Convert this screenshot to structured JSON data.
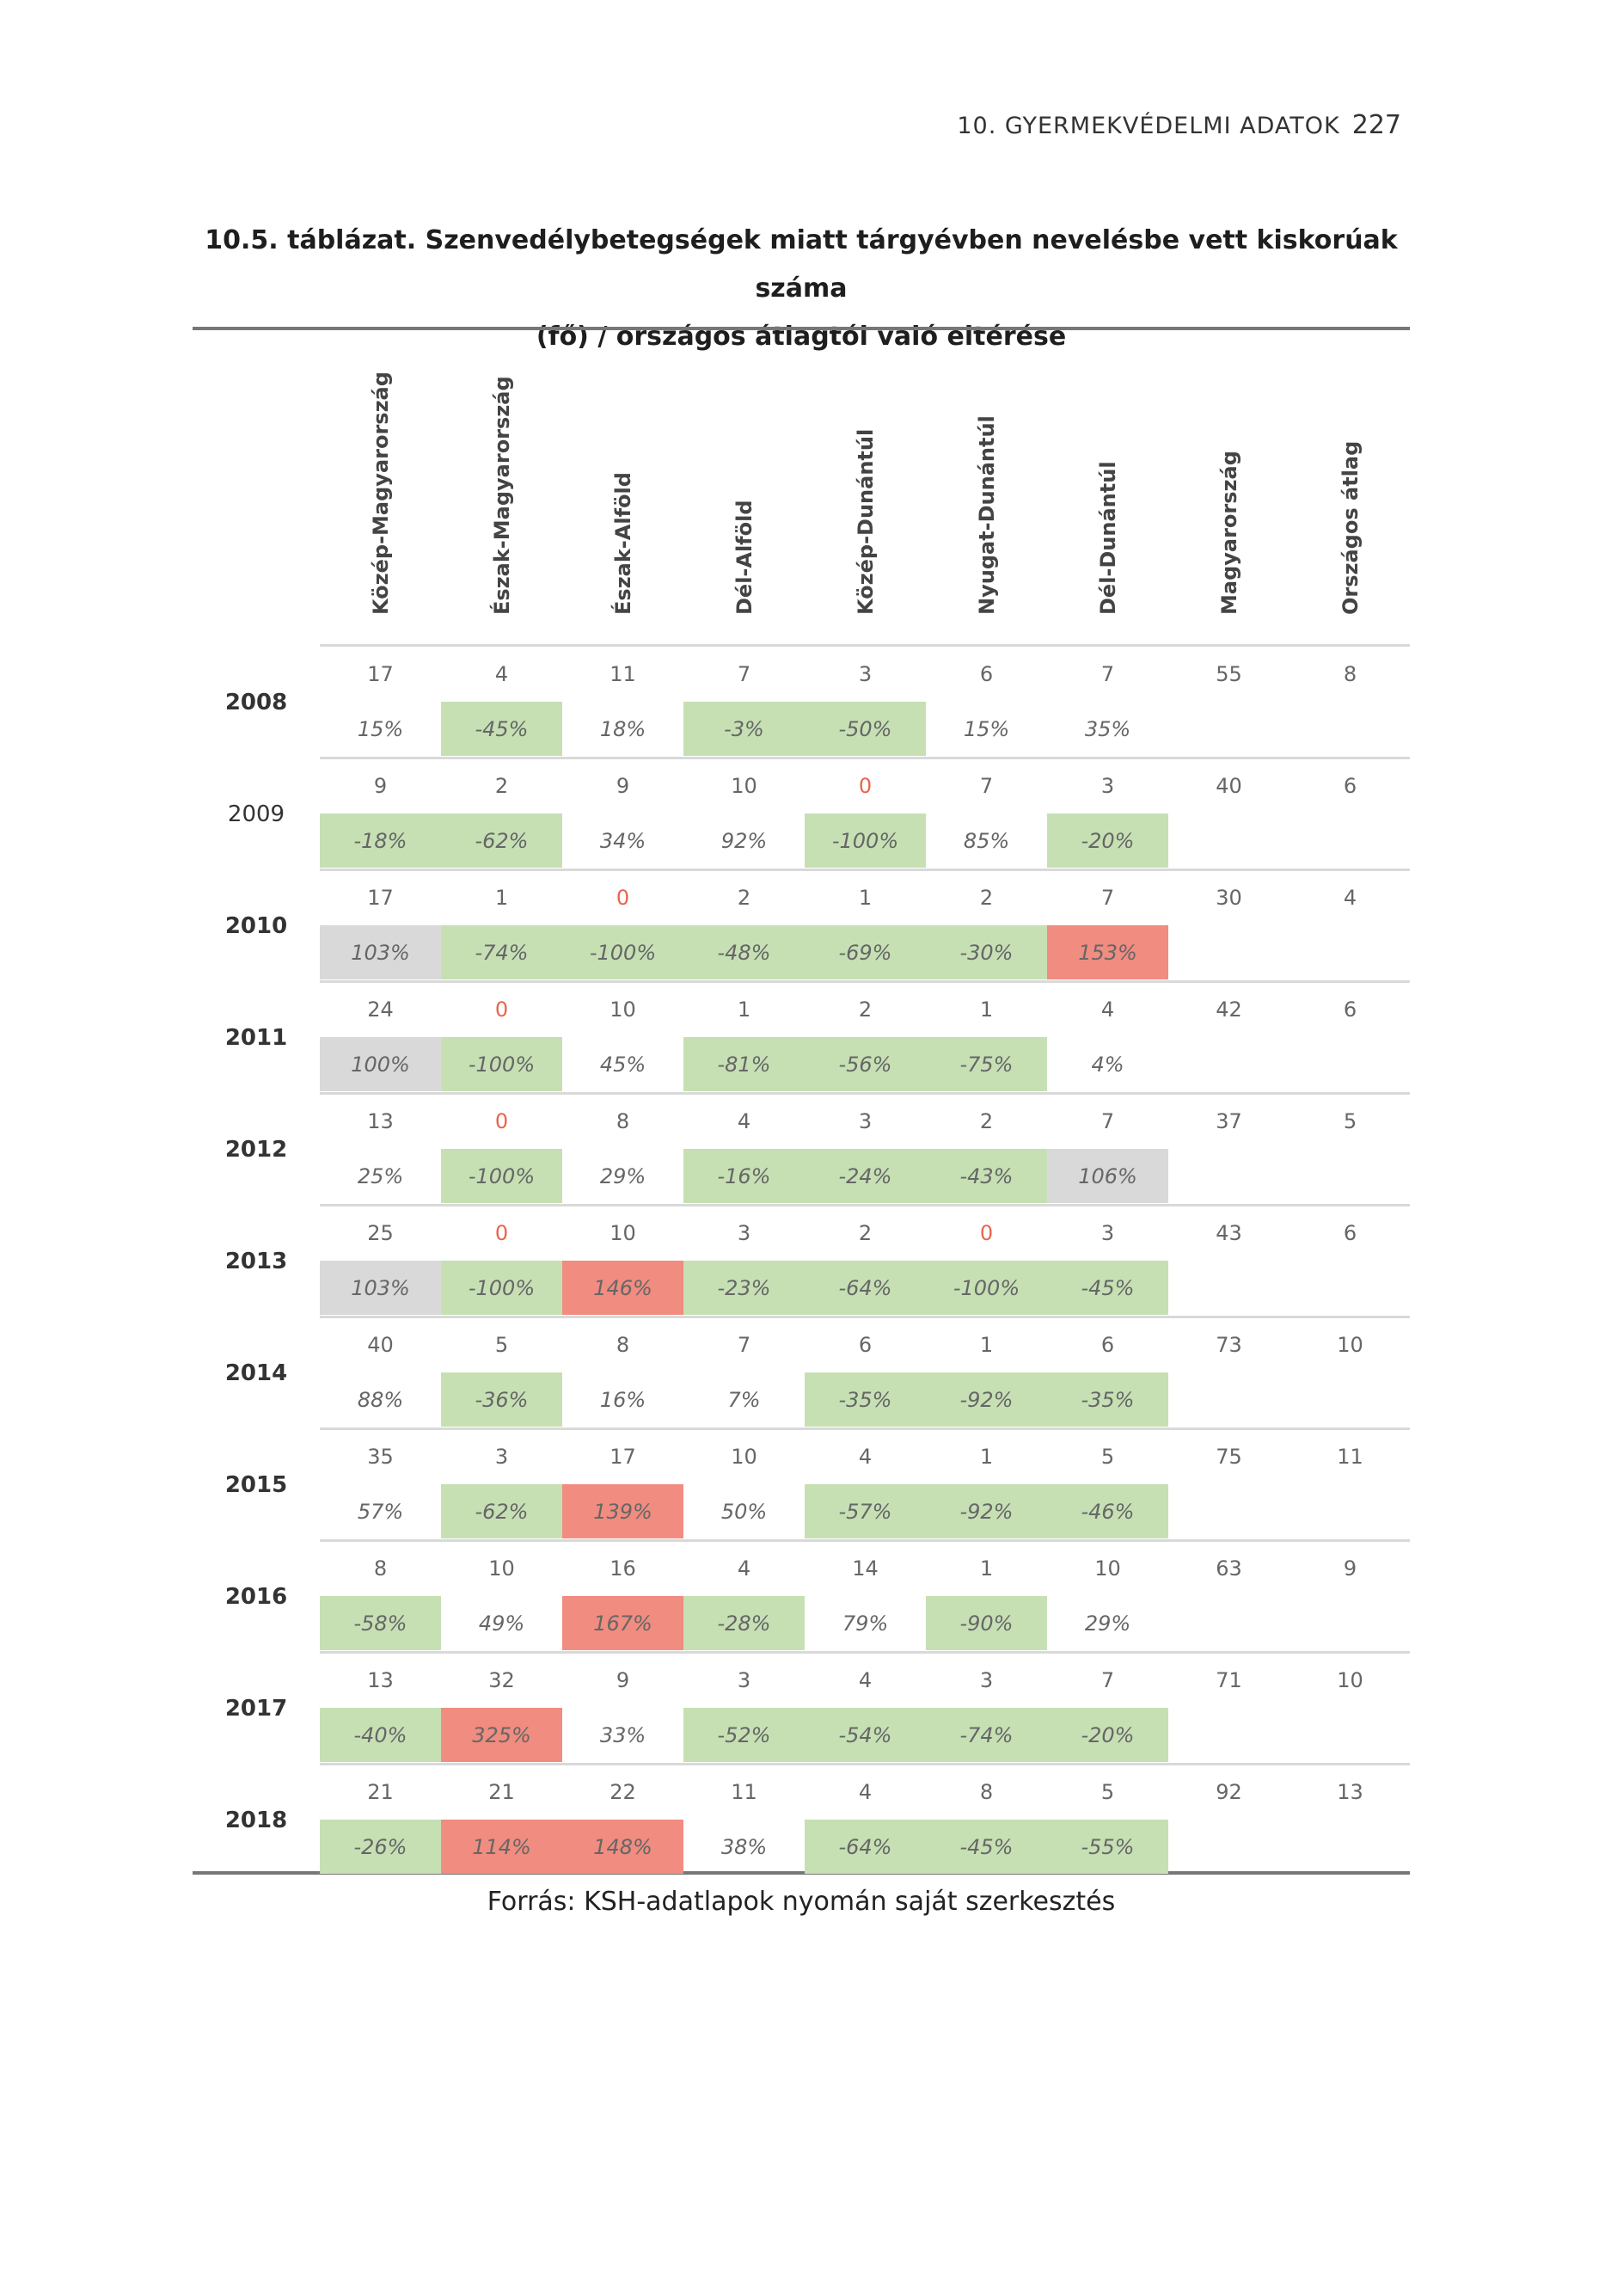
{
  "running_head": {
    "chapter": "10. GYERMEKVÉDELMI ADATOK",
    "page": "227"
  },
  "caption": {
    "line1": "10.5. táblázat. Szenvedélybetegségek miatt tárgyévben nevelésbe vett kiskorúak száma",
    "line2": "(fő) / országos átlagtól való eltérése"
  },
  "columns": [
    "Közép-Magyarország",
    "Észak-Magyarország",
    "Észak-Alföld",
    "Dél-Alföld",
    "Közép-Dunántúl",
    "Nyugat-Dunántúl",
    "Dél-Dunántúl",
    "Magyarország",
    "Országos átlag"
  ],
  "rows": [
    {
      "year": "2008",
      "bold": true,
      "values": [
        "17",
        "4",
        "11",
        "7",
        "3",
        "6",
        "7",
        "55",
        "8"
      ],
      "pct": [
        "15%",
        "-45%",
        "18%",
        "-3%",
        "-50%",
        "15%",
        "35%"
      ],
      "bg": [
        "",
        "green",
        "",
        "green",
        "green",
        "",
        ""
      ]
    },
    {
      "year": "2009",
      "bold": false,
      "values": [
        "9",
        "2",
        "9",
        "10",
        "0",
        "7",
        "3",
        "40",
        "6"
      ],
      "pct": [
        "-18%",
        "-62%",
        "34%",
        "92%",
        "-100%",
        "85%",
        "-20%"
      ],
      "bg": [
        "green",
        "green",
        "",
        "",
        "green",
        "",
        "green"
      ]
    },
    {
      "year": "2010",
      "bold": true,
      "values": [
        "17",
        "1",
        "0",
        "2",
        "1",
        "2",
        "7",
        "30",
        "4"
      ],
      "pct": [
        "103%",
        "-74%",
        "-100%",
        "-48%",
        "-69%",
        "-30%",
        "153%"
      ],
      "bg": [
        "gray",
        "green",
        "green",
        "green",
        "green",
        "green",
        "red"
      ]
    },
    {
      "year": "2011",
      "bold": true,
      "values": [
        "24",
        "0",
        "10",
        "1",
        "2",
        "1",
        "4",
        "42",
        "6"
      ],
      "pct": [
        "100%",
        "-100%",
        "45%",
        "-81%",
        "-56%",
        "-75%",
        "4%"
      ],
      "bg": [
        "gray",
        "green",
        "",
        "green",
        "green",
        "green",
        ""
      ]
    },
    {
      "year": "2012",
      "bold": true,
      "values": [
        "13",
        "0",
        "8",
        "4",
        "3",
        "2",
        "7",
        "37",
        "5"
      ],
      "pct": [
        "25%",
        "-100%",
        "29%",
        "-16%",
        "-24%",
        "-43%",
        "106%"
      ],
      "bg": [
        "",
        "green",
        "",
        "green",
        "green",
        "green",
        "gray"
      ]
    },
    {
      "year": "2013",
      "bold": true,
      "values": [
        "25",
        "0",
        "10",
        "3",
        "2",
        "0",
        "3",
        "43",
        "6"
      ],
      "pct": [
        "103%",
        "-100%",
        "146%",
        "-23%",
        "-64%",
        "-100%",
        "-45%"
      ],
      "bg": [
        "gray",
        "green",
        "red",
        "green",
        "green",
        "green",
        "green"
      ]
    },
    {
      "year": "2014",
      "bold": true,
      "values": [
        "40",
        "5",
        "8",
        "7",
        "6",
        "1",
        "6",
        "73",
        "10"
      ],
      "pct": [
        "88%",
        "-36%",
        "16%",
        "7%",
        "-35%",
        "-92%",
        "-35%"
      ],
      "bg": [
        "",
        "green",
        "",
        "",
        "green",
        "green",
        "green"
      ]
    },
    {
      "year": "2015",
      "bold": true,
      "values": [
        "35",
        "3",
        "17",
        "10",
        "4",
        "1",
        "5",
        "75",
        "11"
      ],
      "pct": [
        "57%",
        "-62%",
        "139%",
        "50%",
        "-57%",
        "-92%",
        "-46%"
      ],
      "bg": [
        "",
        "green",
        "red",
        "",
        "green",
        "green",
        "green"
      ]
    },
    {
      "year": "2016",
      "bold": true,
      "values": [
        "8",
        "10",
        "16",
        "4",
        "14",
        "1",
        "10",
        "63",
        "9"
      ],
      "pct": [
        "-58%",
        "49%",
        "167%",
        "-28%",
        "79%",
        "-90%",
        "29%"
      ],
      "bg": [
        "green",
        "",
        "red",
        "green",
        "",
        "green",
        ""
      ]
    },
    {
      "year": "2017",
      "bold": true,
      "values": [
        "13",
        "32",
        "9",
        "3",
        "4",
        "3",
        "7",
        "71",
        "10"
      ],
      "pct": [
        "-40%",
        "325%",
        "33%",
        "-52%",
        "-54%",
        "-74%",
        "-20%"
      ],
      "bg": [
        "green",
        "red",
        "",
        "green",
        "green",
        "green",
        "green"
      ]
    },
    {
      "year": "2018",
      "bold": true,
      "values": [
        "21",
        "21",
        "22",
        "11",
        "4",
        "8",
        "5",
        "92",
        "13"
      ],
      "pct": [
        "-26%",
        "114%",
        "148%",
        "38%",
        "-64%",
        "-45%",
        "-55%"
      ],
      "bg": [
        "green",
        "red",
        "red",
        "",
        "green",
        "green",
        "green"
      ]
    }
  ],
  "source": "Forrás: KSH-adatlapok nyomán saját szerkesztés",
  "colors": {
    "green": "#c6e0b4",
    "red": "#f08c80",
    "gray": "#d9d9d9",
    "zero_text": "#e8654b"
  }
}
